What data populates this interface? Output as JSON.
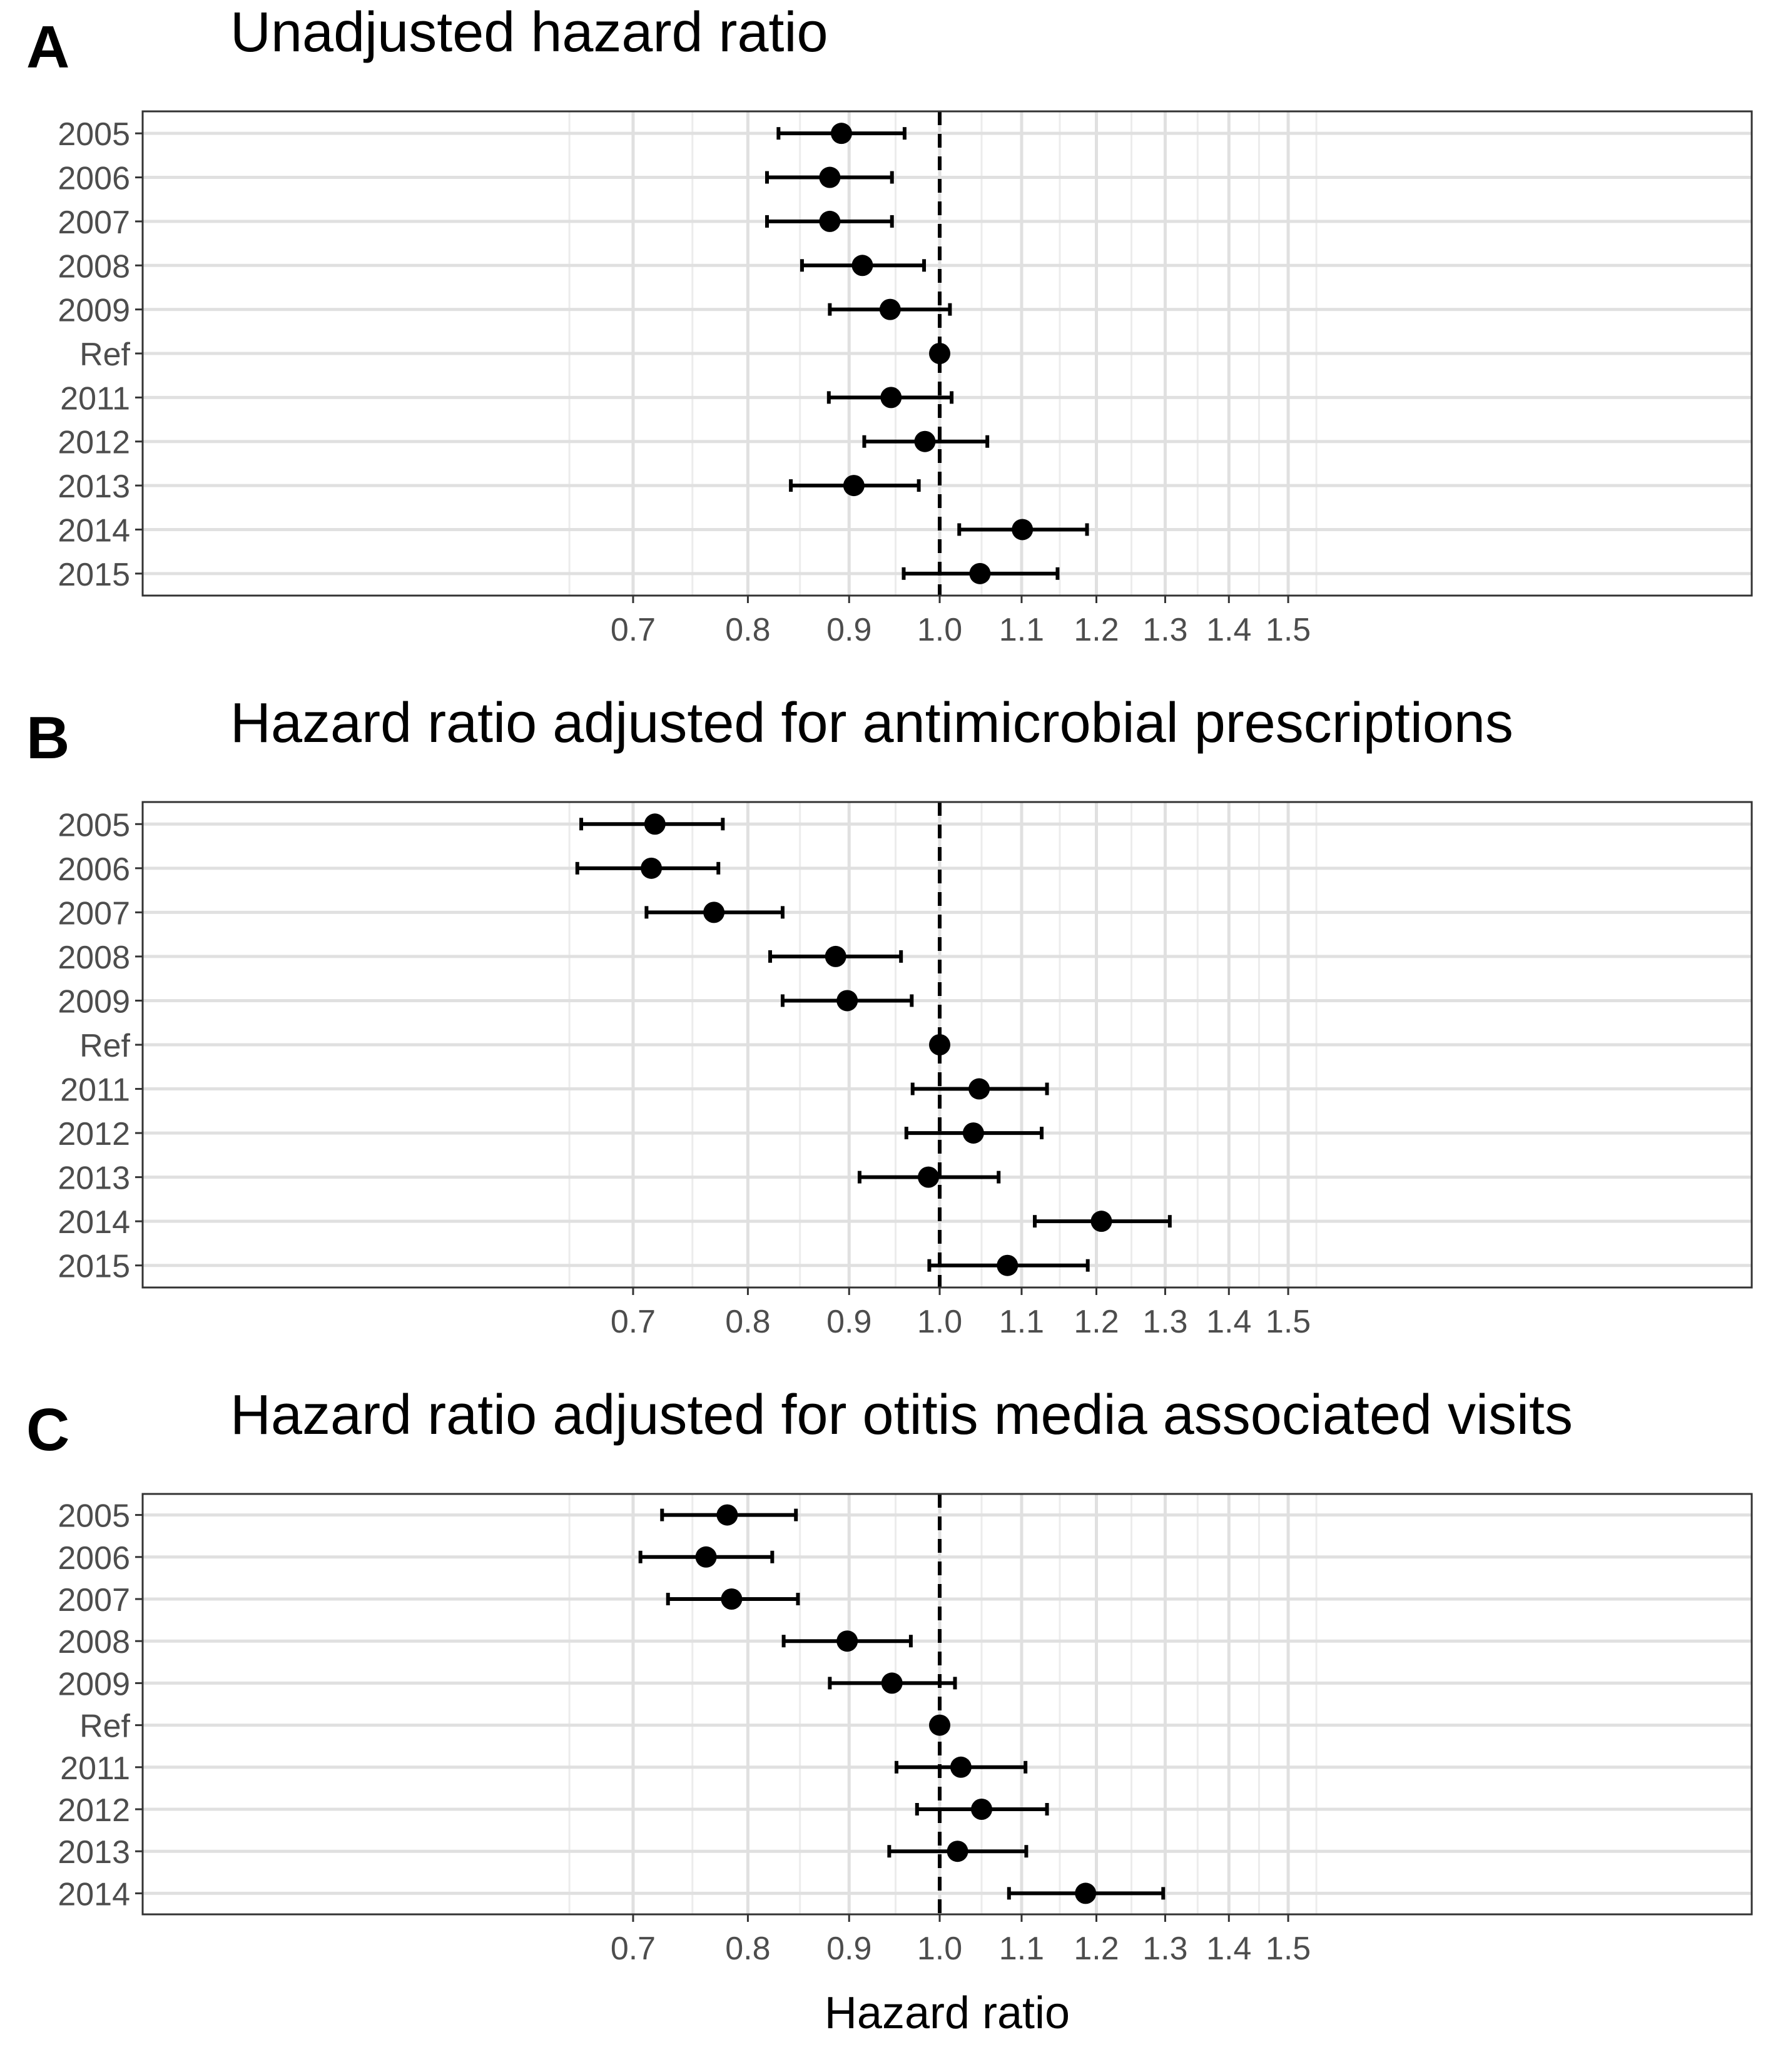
{
  "chart_data": [
    {
      "type": "scatter",
      "panel_label": "A",
      "title": "Unadjusted hazard ratio",
      "xscale": "log",
      "xticks": [
        "0.7",
        "0.8",
        "0.9",
        "1.0",
        "1.1",
        "1.2",
        "1.3",
        "1.4",
        "1.5"
      ],
      "xlabel": "",
      "ylabel": "",
      "reference_line": 1.0,
      "categories": [
        "2005",
        "2006",
        "2007",
        "2008",
        "2009",
        "Ref",
        "2011",
        "2012",
        "2013",
        "2014",
        "2015"
      ],
      "estimate": [
        0.892,
        0.88,
        0.88,
        0.914,
        0.944,
        1.0,
        0.945,
        0.983,
        0.905,
        1.101,
        1.048
      ],
      "lower": [
        0.829,
        0.818,
        0.818,
        0.852,
        0.88,
        1.0,
        0.879,
        0.916,
        0.841,
        1.023,
        0.959
      ],
      "upper": [
        0.96,
        0.946,
        0.946,
        0.982,
        1.012,
        1.0,
        1.014,
        1.057,
        0.976,
        1.187,
        1.147
      ]
    },
    {
      "type": "scatter",
      "panel_label": "B",
      "title": "Hazard ratio adjusted for antimicrobial prescriptions",
      "xscale": "log",
      "xticks": [
        "0.7",
        "0.8",
        "0.9",
        "1.0",
        "1.1",
        "1.2",
        "1.3",
        "1.4",
        "1.5"
      ],
      "xlabel": "",
      "ylabel": "",
      "reference_line": 1.0,
      "categories": [
        "2005",
        "2006",
        "2007",
        "2008",
        "2009",
        "Ref",
        "2011",
        "2012",
        "2013",
        "2014",
        "2015"
      ],
      "estimate": [
        0.718,
        0.715,
        0.769,
        0.886,
        0.898,
        1.0,
        1.047,
        1.04,
        0.987,
        1.207,
        1.082
      ],
      "lower": [
        0.659,
        0.656,
        0.711,
        0.821,
        0.833,
        1.0,
        0.969,
        0.962,
        0.911,
        1.117,
        0.988
      ],
      "upper": [
        0.777,
        0.773,
        0.833,
        0.956,
        0.968,
        1.0,
        1.133,
        1.126,
        1.071,
        1.307,
        1.188
      ]
    },
    {
      "type": "scatter",
      "panel_label": "C",
      "title": "Hazard ratio adjusted for otitis media associated visits",
      "xscale": "log",
      "xticks": [
        "0.7",
        "0.8",
        "0.9",
        "1.0",
        "1.1",
        "1.2",
        "1.3",
        "1.4",
        "1.5"
      ],
      "xlabel": "Hazard ratio",
      "ylabel": "",
      "reference_line": 1.0,
      "categories": [
        "2005",
        "2006",
        "2007",
        "2008",
        "2009",
        "Ref",
        "2011",
        "2012",
        "2013",
        "2014"
      ],
      "estimate": [
        0.781,
        0.762,
        0.785,
        0.898,
        0.946,
        1.0,
        1.025,
        1.05,
        1.021,
        1.185
      ],
      "lower": [
        0.724,
        0.706,
        0.729,
        0.834,
        0.88,
        1.0,
        0.951,
        0.974,
        0.943,
        1.084
      ],
      "upper": [
        0.846,
        0.823,
        0.848,
        0.967,
        1.018,
        1.0,
        1.105,
        1.133,
        1.106,
        1.297
      ]
    }
  ]
}
